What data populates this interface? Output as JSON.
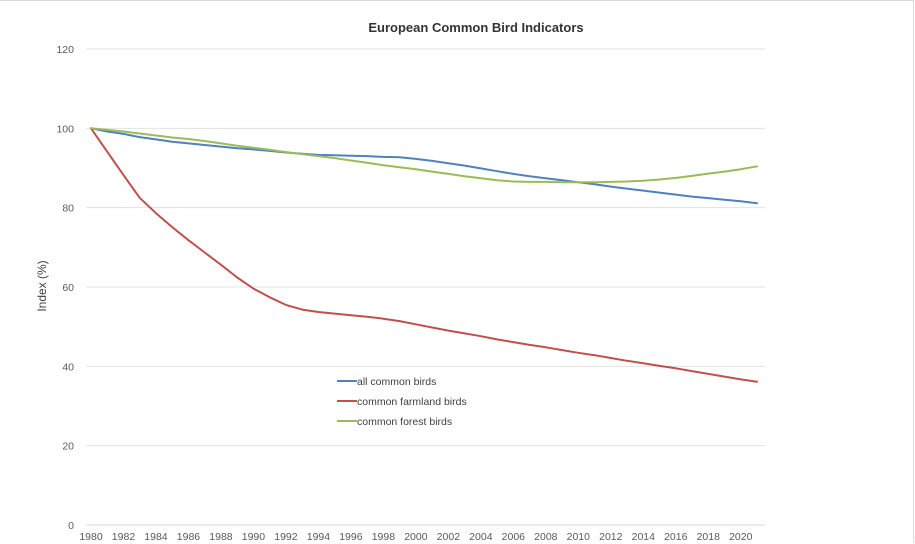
{
  "chart_data": {
    "type": "line",
    "title": "European Common Bird Indicators",
    "xlabel": "",
    "ylabel": "Index (%)",
    "ylim": [
      0,
      120
    ],
    "yticks": [
      0,
      20,
      40,
      60,
      80,
      100,
      120
    ],
    "xlim": [
      1980,
      2021
    ],
    "xticks": [
      1980,
      1982,
      1984,
      1986,
      1988,
      1990,
      1992,
      1994,
      1996,
      1998,
      2000,
      2002,
      2004,
      2006,
      2008,
      2010,
      2012,
      2014,
      2016,
      2018,
      2020
    ],
    "grid": "horizontal",
    "legend": "center",
    "x": [
      1980,
      1981,
      1982,
      1983,
      1984,
      1985,
      1986,
      1987,
      1988,
      1989,
      1990,
      1991,
      1992,
      1993,
      1994,
      1995,
      1996,
      1997,
      1998,
      1999,
      2000,
      2001,
      2002,
      2003,
      2004,
      2005,
      2006,
      2007,
      2008,
      2009,
      2010,
      2011,
      2012,
      2013,
      2014,
      2015,
      2016,
      2017,
      2018,
      2019,
      2020,
      2021
    ],
    "series": [
      {
        "name": "all common birds",
        "color": "#4f81bd",
        "values": [
          100,
          99.2,
          98.6,
          97.8,
          97.2,
          96.6,
          96.2,
          95.8,
          95.4,
          95.0,
          94.7,
          94.3,
          93.9,
          93.6,
          93.3,
          93.2,
          93.1,
          93.0,
          92.8,
          92.7,
          92.3,
          91.8,
          91.2,
          90.6,
          89.9,
          89.2,
          88.5,
          87.9,
          87.4,
          86.9,
          86.4,
          85.9,
          85.3,
          84.8,
          84.3,
          83.8,
          83.3,
          82.8,
          82.4,
          82.0,
          81.6,
          81.1
        ]
      },
      {
        "name": "common farmland birds",
        "color": "#c0504d",
        "values": [
          100,
          94.1,
          88.2,
          82.5,
          78.6,
          75.1,
          71.8,
          68.7,
          65.6,
          62.4,
          59.6,
          57.4,
          55.5,
          54.3,
          53.7,
          53.3,
          52.9,
          52.5,
          52.0,
          51.4,
          50.6,
          49.8,
          49.0,
          48.3,
          47.6,
          46.8,
          46.1,
          45.4,
          44.8,
          44.1,
          43.4,
          42.8,
          42.1,
          41.4,
          40.8,
          40.1,
          39.5,
          38.8,
          38.1,
          37.4,
          36.7,
          36.1
        ]
      },
      {
        "name": "common forest birds",
        "color": "#9bbb59",
        "values": [
          100,
          99.6,
          99.2,
          98.7,
          98.2,
          97.7,
          97.3,
          96.8,
          96.2,
          95.6,
          95.1,
          94.6,
          94.0,
          93.5,
          93.0,
          92.5,
          91.9,
          91.3,
          90.7,
          90.2,
          89.7,
          89.1,
          88.5,
          87.9,
          87.4,
          86.9,
          86.6,
          86.5,
          86.5,
          86.4,
          86.4,
          86.4,
          86.5,
          86.6,
          86.8,
          87.1,
          87.5,
          88.0,
          88.6,
          89.1,
          89.7,
          90.4
        ]
      }
    ]
  }
}
